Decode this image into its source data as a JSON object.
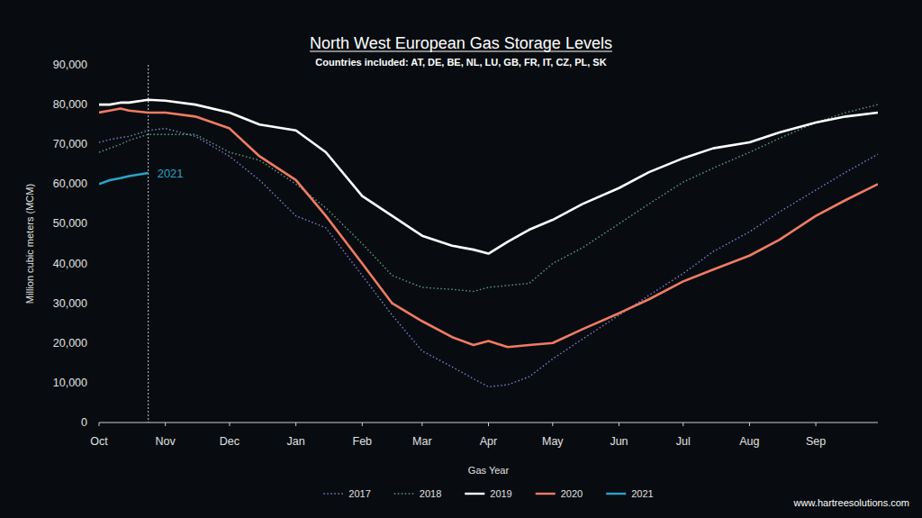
{
  "chart_data": {
    "type": "line",
    "title": "North West European Gas Storage Levels",
    "subtitle": "Countries included: AT, DE, BE, NL, LU, GB, FR, IT, CZ, PL, SK",
    "x_label": "Gas Year",
    "y_label": "Million cubic meters (MCM)",
    "source": "www.hartreesolutions.com",
    "x": [
      0,
      5,
      10,
      14,
      23,
      31,
      45,
      61,
      75,
      92,
      106,
      123,
      137,
      151,
      165,
      175,
      182,
      191,
      201,
      212,
      226,
      243,
      257,
      273,
      287,
      304,
      318,
      335,
      349,
      364
    ],
    "xlim": [
      0,
      364
    ],
    "xticks": [
      {
        "value": 0,
        "label": "Oct"
      },
      {
        "value": 31,
        "label": "Nov"
      },
      {
        "value": 61,
        "label": "Dec"
      },
      {
        "value": 92,
        "label": "Jan"
      },
      {
        "value": 123,
        "label": "Feb"
      },
      {
        "value": 151,
        "label": "Mar"
      },
      {
        "value": 182,
        "label": "Apr"
      },
      {
        "value": 212,
        "label": "May"
      },
      {
        "value": 243,
        "label": "Jun"
      },
      {
        "value": 273,
        "label": "Jul"
      },
      {
        "value": 304,
        "label": "Aug"
      },
      {
        "value": 335,
        "label": "Sep"
      }
    ],
    "ylim": [
      0,
      90000
    ],
    "yticks": [
      0,
      {
        "value": 10000,
        "label": "10,000"
      },
      {
        "value": 20000,
        "label": "20,000"
      },
      {
        "value": 30000,
        "label": "30,000"
      },
      {
        "value": 40000,
        "label": "40,000"
      },
      {
        "value": 50000,
        "label": "50,000"
      },
      {
        "value": 60000,
        "label": "60,000"
      },
      {
        "value": 70000,
        "label": "70,000"
      },
      {
        "value": 80000,
        "label": "80,000"
      },
      {
        "value": 90000,
        "label": "90,000"
      }
    ],
    "grid": false,
    "legend": "bottom",
    "series": [
      {
        "name": "2017",
        "color": "#7b7fd6",
        "line_style": "dotted",
        "values": [
          70500,
          71200,
          71700,
          72000,
          73500,
          74000,
          72000,
          67000,
          61000,
          52000,
          49000,
          37000,
          27000,
          18000,
          14000,
          11000,
          9000,
          9500,
          11500,
          16000,
          21000,
          27000,
          32000,
          37500,
          43000,
          48000,
          53000,
          58500,
          63000,
          67500
        ]
      },
      {
        "name": "2018",
        "color": "#5e9e7a",
        "line_style": "dotted",
        "values": [
          68000,
          69000,
          70000,
          71000,
          72500,
          72500,
          72500,
          68000,
          66000,
          60000,
          54000,
          45000,
          37000,
          34000,
          33500,
          33000,
          34000,
          34500,
          35000,
          40000,
          44000,
          50000,
          55000,
          60500,
          64000,
          68000,
          71500,
          75500,
          78000,
          80000
        ]
      },
      {
        "name": "2019",
        "color": "#ffffff",
        "line_style": "solid",
        "values": [
          80000,
          80000,
          80500,
          80500,
          81200,
          81000,
          80000,
          78000,
          75000,
          73500,
          68000,
          57000,
          52000,
          47000,
          44500,
          43500,
          42500,
          45500,
          48500,
          51000,
          55000,
          59000,
          63000,
          66500,
          69000,
          70500,
          73000,
          75500,
          77000,
          78000
        ]
      },
      {
        "name": "2020",
        "color": "#f07b63",
        "line_style": "solid",
        "values": [
          78000,
          78500,
          79000,
          78500,
          78000,
          78000,
          77000,
          74000,
          67000,
          61000,
          52000,
          40000,
          30000,
          25500,
          21500,
          19500,
          20500,
          19000,
          19500,
          20000,
          23500,
          27500,
          31000,
          35500,
          38500,
          42000,
          46000,
          52000,
          56000,
          60000
        ]
      },
      {
        "name": "2021",
        "color": "#2aa3c7",
        "line_style": "solid",
        "values": [
          60000,
          61000,
          61500,
          62000,
          62800,
          null,
          null,
          null,
          null,
          null,
          null,
          null,
          null,
          null,
          null,
          null,
          null,
          null,
          null,
          null,
          null,
          null,
          null,
          null,
          null,
          null,
          null,
          null,
          null,
          null
        ]
      }
    ],
    "annotations": [
      {
        "text": "2021",
        "x": 23,
        "color": "#2aa3c7"
      }
    ]
  }
}
